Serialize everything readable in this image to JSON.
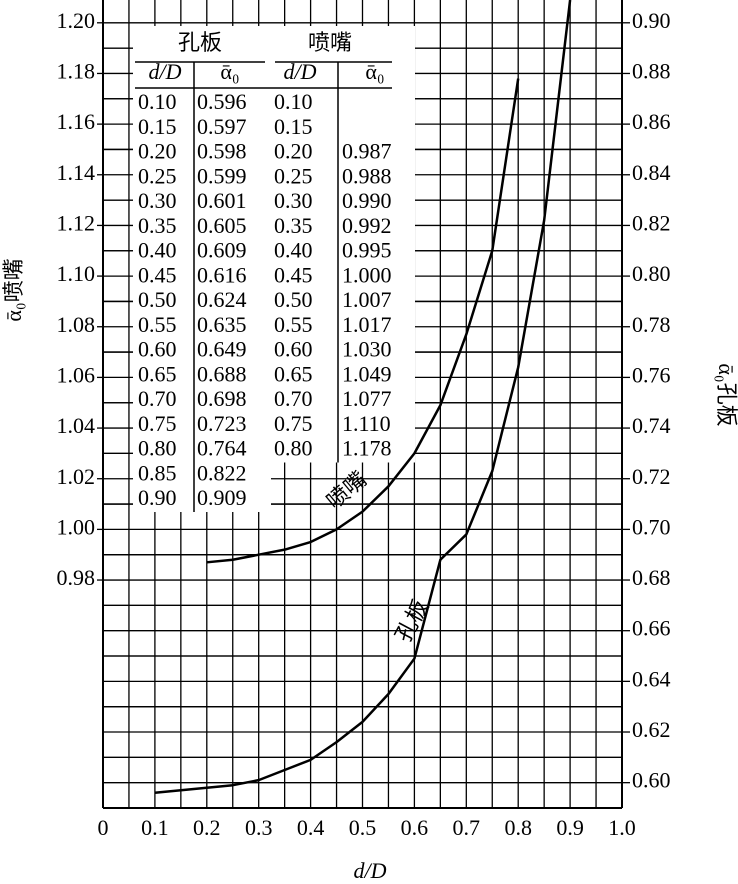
{
  "chart_data": {
    "type": "line",
    "x_label": "d/D",
    "y_label": "ᾱ₀喷嘴",
    "y2_label": "ᾱ₀孔板",
    "xlim": [
      0,
      1
    ],
    "xticks": [
      0,
      0.1,
      0.2,
      0.3,
      0.4,
      0.5,
      0.6,
      0.7,
      0.8,
      0.9,
      {
        "value": 1,
        "label": "1.0"
      }
    ],
    "ylim": [
      0.89,
      1.209
    ],
    "yticks": [
      0.98,
      {
        "value": 1,
        "label": "1.00"
      },
      1.02,
      1.04,
      1.06,
      1.08,
      {
        "value": 1.1,
        "label": "1.10"
      },
      1.12,
      1.14,
      1.16,
      1.18,
      {
        "value": 1.2,
        "label": "1.20"
      }
    ],
    "y2lim": [
      0.59,
      0.909
    ],
    "y2ticks": [
      {
        "value": 0.6,
        "label": "0.60"
      },
      0.62,
      0.64,
      0.66,
      0.68,
      {
        "value": 0.7,
        "label": "0.70"
      },
      0.72,
      0.74,
      0.76,
      0.78,
      {
        "value": 0.8,
        "label": "0.80"
      },
      0.82,
      0.84,
      0.86,
      0.88,
      {
        "value": 0.9,
        "label": "0.90"
      }
    ],
    "grid": true,
    "table_columns": [
      "d/D",
      "ᾱ₀"
    ],
    "x": [
      0.1,
      0.15,
      0.2,
      0.25,
      0.3,
      0.35,
      0.4,
      0.45,
      0.5,
      0.55,
      0.6,
      0.65,
      0.7,
      0.75,
      0.8,
      0.85,
      0.9
    ],
    "x_labels": [
      "0.10",
      "0.15",
      "0.20",
      "0.25",
      "0.30",
      "0.35",
      "0.40",
      "0.45",
      "0.50",
      "0.55",
      "0.60",
      "0.65",
      "0.70",
      "0.75",
      "0.80",
      "0.85",
      "0.90"
    ],
    "series": [
      {
        "name": "孔板",
        "axis": "y2",
        "color": "#000000",
        "values": [
          0.596,
          0.597,
          0.598,
          0.599,
          0.601,
          0.605,
          0.609,
          0.616,
          0.624,
          0.635,
          0.649,
          0.688,
          0.698,
          0.723,
          0.764,
          0.822,
          0.909
        ]
      },
      {
        "name": "喷嘴",
        "color": "#000000",
        "values": [
          null,
          null,
          0.987,
          0.988,
          0.99,
          0.992,
          0.995,
          1,
          1.007,
          1.017,
          1.03,
          1.049,
          1.077,
          1.11,
          1.178,
          null,
          null
        ],
        "value_labels": [
          null,
          null,
          "0.987",
          "0.988",
          "0.990",
          "0.992",
          "0.995",
          "1.000",
          "1.007",
          "1.017",
          "1.030",
          "1.049",
          "1.077",
          "1.110",
          "1.178",
          null,
          null
        ]
      }
    ]
  }
}
